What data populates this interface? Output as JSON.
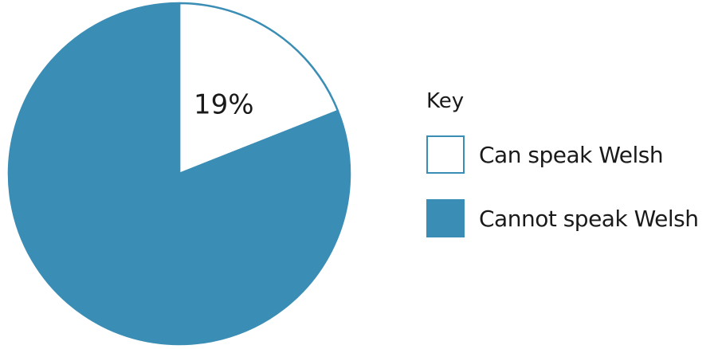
{
  "chart_data": {
    "type": "pie",
    "title": "",
    "start_angle_deg": 0,
    "direction": "clockwise",
    "slices": [
      {
        "label": "Can speak Welsh",
        "value": 19,
        "value_label": "19%",
        "fill": "#ffffff",
        "stroke": "#3a8db5"
      },
      {
        "label": "Cannot speak Welsh",
        "value": 81,
        "value_label": "",
        "fill": "#3a8db5",
        "stroke": "#3a8db5"
      }
    ],
    "legend": {
      "title": "Key",
      "placement": "right"
    }
  }
}
